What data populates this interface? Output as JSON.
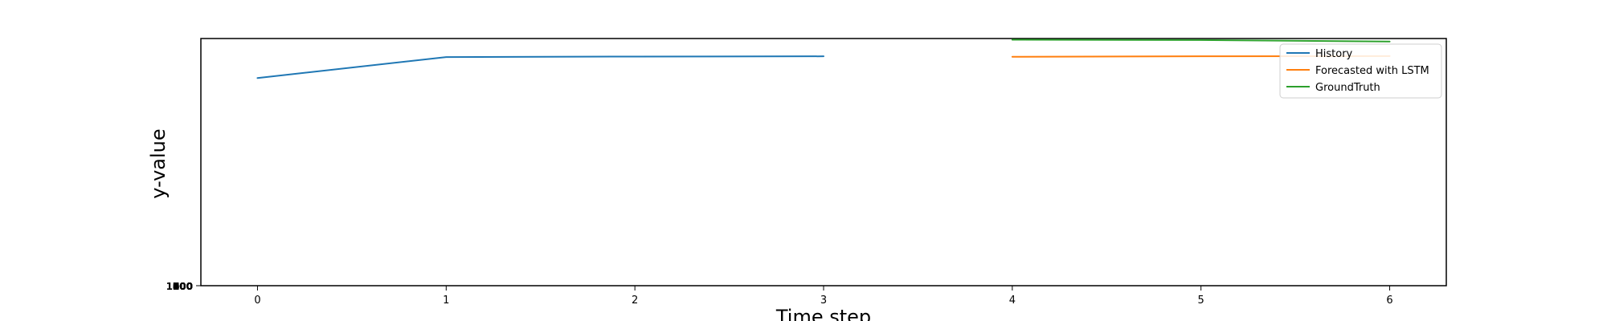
{
  "chart_data": {
    "type": "line",
    "title": "",
    "xlabel": "Time step",
    "ylabel": "y-value",
    "xlim": [
      -0.3,
      6.3
    ],
    "ylim": [
      0,
      100
    ],
    "x_ticks": [
      0,
      1,
      2,
      3,
      4,
      5,
      6
    ],
    "y_ticks_overlapped": [
      "100",
      "200",
      "300",
      "400",
      "500",
      "600",
      "700",
      "800",
      "900",
      "1000"
    ],
    "grid": false,
    "legend_position": "top-right",
    "series": [
      {
        "name": "History",
        "color": "#1f77b4",
        "x": [
          0,
          1,
          2,
          3
        ],
        "y": [
          84.0,
          92.5,
          92.7,
          92.8
        ]
      },
      {
        "name": "Forecasted with LSTM",
        "color": "#ff7f0e",
        "x": [
          4,
          5,
          6
        ],
        "y": [
          92.6,
          92.8,
          92.9
        ]
      },
      {
        "name": "GroundTruth",
        "color": "#2ca02c",
        "x": [
          4,
          5,
          6
        ],
        "y": [
          99.5,
          99.4,
          98.8
        ]
      }
    ]
  }
}
